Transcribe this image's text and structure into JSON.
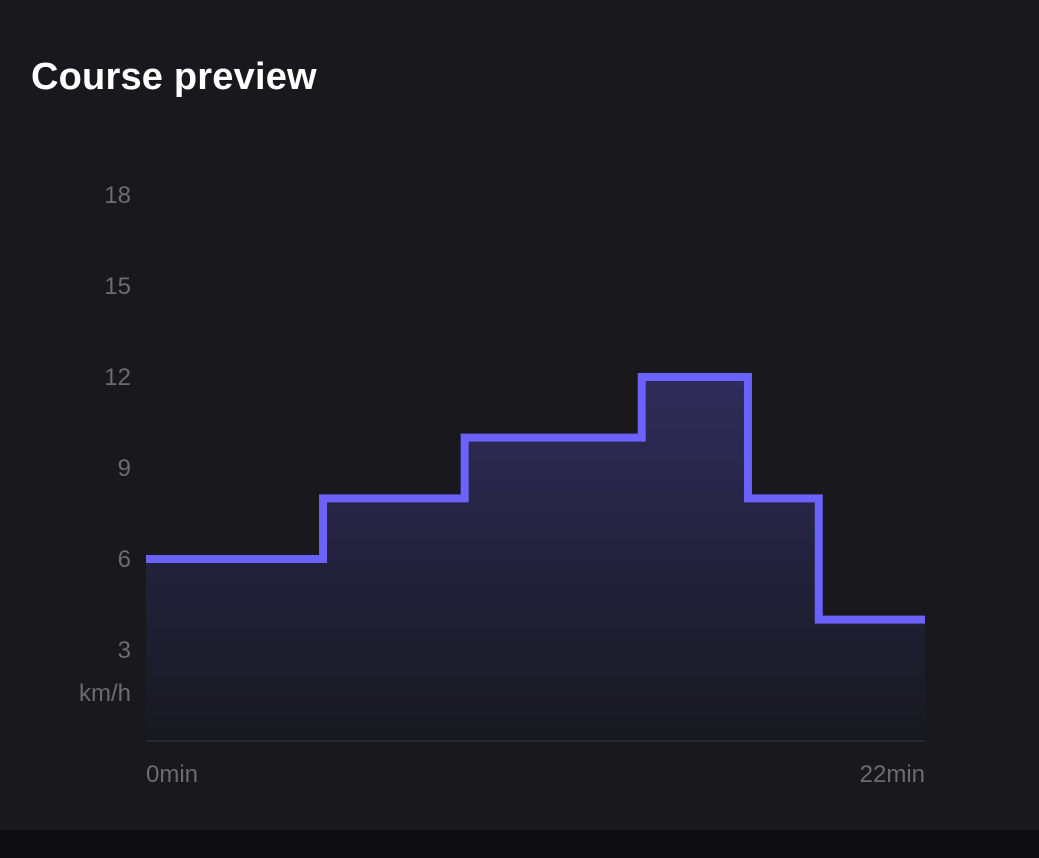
{
  "panel": {
    "title": "Course preview"
  },
  "colors": {
    "background": "#18181d",
    "line": "#6a62fa",
    "fill_top": "#2f2c5a",
    "fill_bottom": "#18181f",
    "tick_text": "#6b6b72",
    "baseline": "#2c2c33",
    "title": "#ffffff"
  },
  "chart_data": {
    "type": "area",
    "step": true,
    "xlabel": "",
    "ylabel": "km/h",
    "x_tick_labels": [
      "0min",
      "22min"
    ],
    "y_ticks": [
      3,
      6,
      9,
      12,
      15,
      18
    ],
    "ylim": [
      0,
      18
    ],
    "xlim": [
      0,
      22
    ],
    "x_unit": "min",
    "grid": false,
    "legend": "none",
    "segments": [
      {
        "start": 0,
        "end": 5,
        "speed": 6
      },
      {
        "start": 5,
        "end": 9,
        "speed": 8
      },
      {
        "start": 9,
        "end": 14,
        "speed": 10
      },
      {
        "start": 14,
        "end": 17,
        "speed": 12
      },
      {
        "start": 17,
        "end": 19,
        "speed": 8
      },
      {
        "start": 19,
        "end": 22,
        "speed": 4
      }
    ]
  }
}
